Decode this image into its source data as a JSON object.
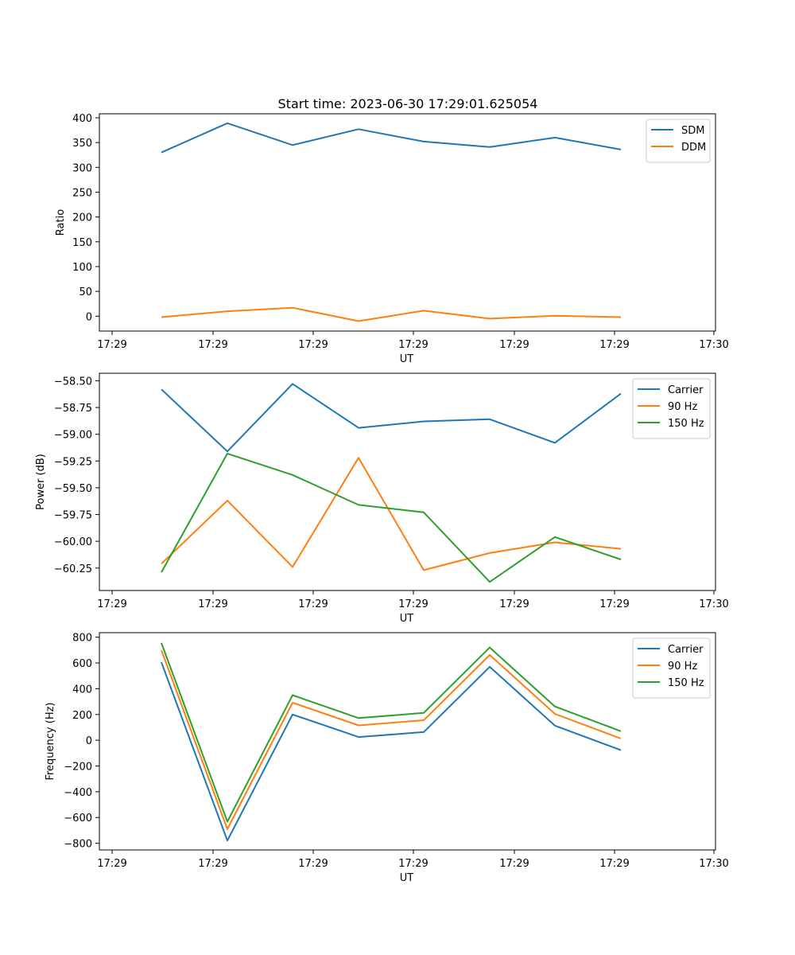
{
  "figure": {
    "title": "Start time: 2023-06-30 17:29:01.625054"
  },
  "chart_data": [
    {
      "type": "line",
      "title": "Start time: 2023-06-30 17:29:01.625054",
      "xlabel": "UT",
      "ylabel": "Ratio",
      "x_ticks": [
        "17:29",
        "17:29",
        "17:29",
        "17:29",
        "17:29",
        "17:29",
        "17:30"
      ],
      "y_ticks": [
        "0",
        "50",
        "100",
        "150",
        "200",
        "250",
        "300",
        "350",
        "400"
      ],
      "ylim": [
        -30,
        408
      ],
      "grid": false,
      "legend": "top-right",
      "series": [
        {
          "name": "SDM",
          "color": "#1f77b4",
          "values": [
            330,
            389,
            345,
            377,
            352,
            341,
            360,
            336
          ]
        },
        {
          "name": "DDM",
          "color": "#ff7f0e",
          "values": [
            -2,
            10,
            17,
            -10,
            11,
            -5,
            1,
            -2
          ]
        }
      ]
    },
    {
      "type": "line",
      "xlabel": "UT",
      "ylabel": "Power (dB)",
      "x_ticks": [
        "17:29",
        "17:29",
        "17:29",
        "17:29",
        "17:29",
        "17:29",
        "17:30"
      ],
      "y_ticks": [
        "−58.50",
        "−58.75",
        "−59.00",
        "−59.25",
        "−59.50",
        "−59.75",
        "−60.00",
        "−60.25"
      ],
      "ylim": [
        -60.46,
        -58.43
      ],
      "grid": false,
      "legend": "top-right",
      "series": [
        {
          "name": "Carrier",
          "color": "#1f77b4",
          "values": [
            -58.58,
            -59.16,
            -58.53,
            -58.94,
            -58.88,
            -58.86,
            -59.08,
            -58.62
          ]
        },
        {
          "name": "90 Hz",
          "color": "#ff7f0e",
          "values": [
            -60.21,
            -59.62,
            -60.24,
            -59.22,
            -60.27,
            -60.11,
            -60.01,
            -60.07
          ]
        },
        {
          "name": "150 Hz",
          "color": "#2ca02c",
          "values": [
            -60.29,
            -59.18,
            -59.38,
            -59.66,
            -59.73,
            -60.38,
            -59.96,
            -60.17
          ]
        }
      ]
    },
    {
      "type": "line",
      "xlabel": "UT",
      "ylabel": "Frequency (Hz)",
      "x_ticks": [
        "17:29",
        "17:29",
        "17:29",
        "17:29",
        "17:29",
        "17:29",
        "17:30"
      ],
      "y_ticks": [
        "−800",
        "−600",
        "−400",
        "−200",
        "0",
        "200",
        "400",
        "600",
        "800"
      ],
      "ylim": [
        -852,
        835
      ],
      "grid": false,
      "legend": "top-right",
      "series": [
        {
          "name": "Carrier",
          "color": "#1f77b4",
          "values": [
            605,
            -779,
            200,
            25,
            63,
            570,
            113,
            -77
          ]
        },
        {
          "name": "90 Hz",
          "color": "#ff7f0e",
          "values": [
            700,
            -690,
            292,
            115,
            155,
            662,
            205,
            13
          ]
        },
        {
          "name": "150 Hz",
          "color": "#2ca02c",
          "values": [
            755,
            -632,
            350,
            172,
            212,
            720,
            262,
            70
          ]
        }
      ]
    }
  ]
}
